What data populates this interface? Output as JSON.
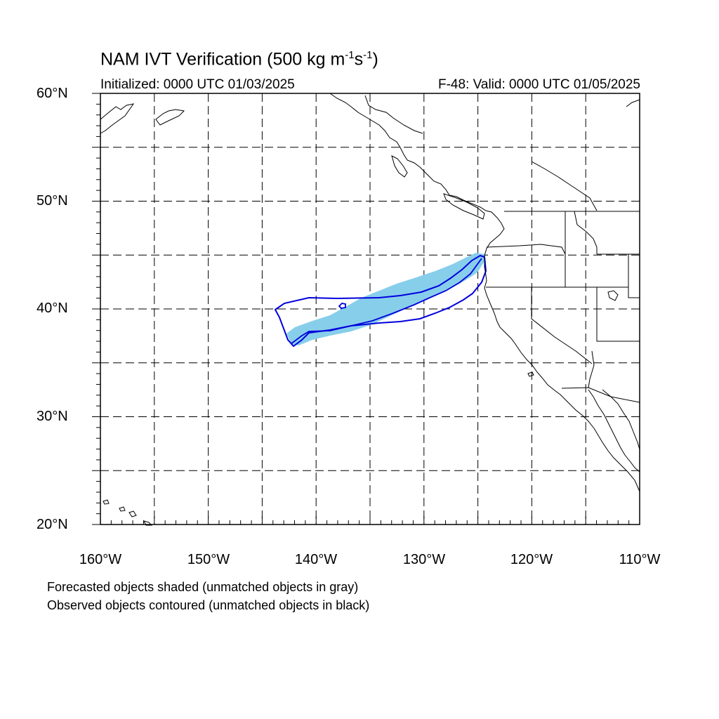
{
  "title": {
    "main": "NAM IVT Verification (500 kg m",
    "exp1": "-1",
    "mid": "s",
    "exp2": "-1",
    "end": ")"
  },
  "initialized": "Initialized: 0000 UTC 01/03/2025",
  "valid": "F-48: Valid: 0000 UTC 01/05/2025",
  "lat_labels": [
    "60°N",
    "50°N",
    "40°N",
    "30°N",
    "20°N"
  ],
  "lon_labels": [
    "160°W",
    "150°W",
    "140°W",
    "130°W",
    "120°W",
    "110°W"
  ],
  "notes": [
    "Forecasted objects shaded (unmatched objects in gray)",
    "Observed objects contoured (unmatched objects in black)"
  ],
  "colors": {
    "forecast_fill": "#87ceeb",
    "observed_contour": "#0000dd",
    "grid": "#000000",
    "coast": "#000000"
  },
  "map_extent": {
    "lon_min": -160,
    "lon_max": -110,
    "lat_min": 20,
    "lat_max": 60,
    "grid_step": 5
  }
}
